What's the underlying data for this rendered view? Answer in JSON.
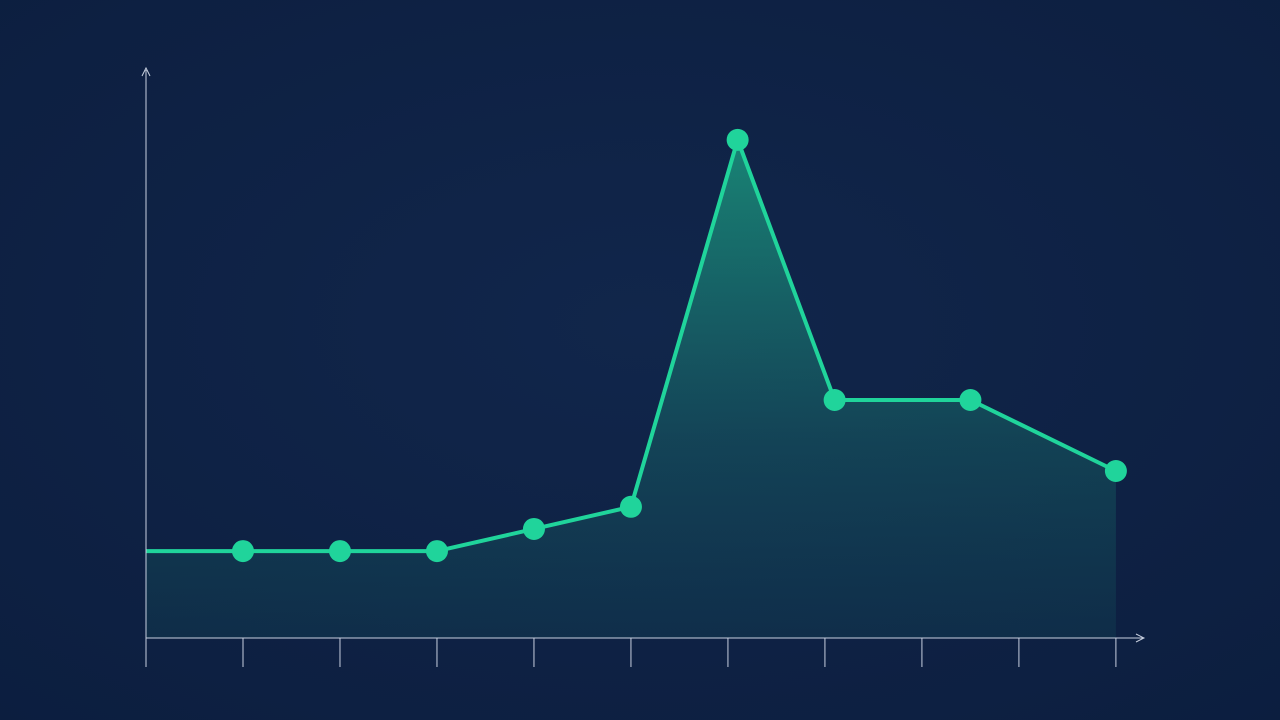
{
  "chart_data": {
    "type": "line",
    "x": [
      0,
      1,
      2,
      3,
      4,
      5,
      6.1,
      7.1,
      8.5,
      10
    ],
    "series": [
      {
        "color": "#20d49b",
        "values": [
          15.3,
          15.3,
          15.3,
          15.3,
          19.2,
          23.1,
          87.7,
          41.9,
          41.9,
          29.4
        ]
      }
    ],
    "xlim": [
      0,
      10.3
    ],
    "ylim": [
      0,
      100
    ],
    "xticks": [
      0,
      1,
      2,
      3,
      4,
      5,
      6,
      7,
      8,
      9,
      10
    ],
    "area": true
  }
}
